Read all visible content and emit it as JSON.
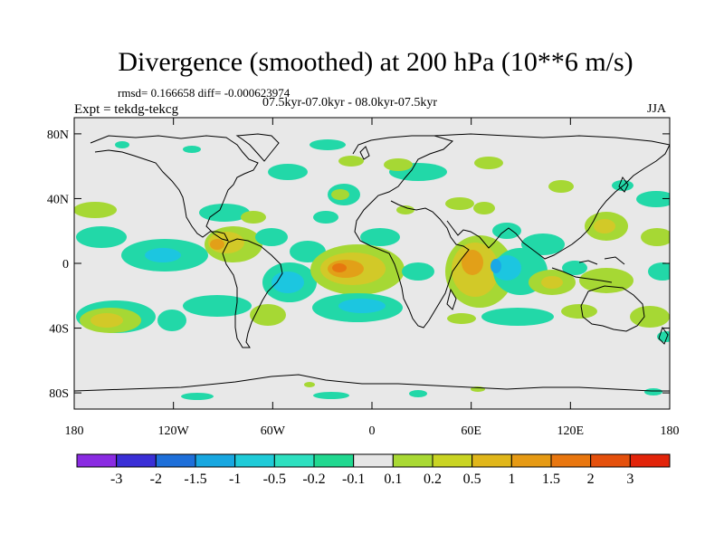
{
  "title": "Divergence (smoothed) at 200 hPa (10**6 m/s)",
  "stats_line": "rmsd= 0.166658 diff= -0.000623974",
  "periods_line": "07.5kyr-07.0kyr - 08.0kyr-07.5kyr",
  "experiment_label": "Expt = tekdg-tekcg",
  "season": "JJA",
  "map": {
    "background_color": "#e8e8e8",
    "lat_ticks": [
      {
        "value": 80,
        "label": "80N"
      },
      {
        "value": 40,
        "label": "40N"
      },
      {
        "value": 0,
        "label": "0"
      },
      {
        "value": -40,
        "label": "40S"
      },
      {
        "value": -80,
        "label": "80S"
      }
    ],
    "lon_ticks": [
      {
        "value": -180,
        "label": "180"
      },
      {
        "value": -120,
        "label": "120W"
      },
      {
        "value": -60,
        "label": "60W"
      },
      {
        "value": 0,
        "label": "0"
      },
      {
        "value": 60,
        "label": "60E"
      },
      {
        "value": 120,
        "label": "120E"
      },
      {
        "value": 180,
        "label": "180"
      }
    ]
  },
  "colorbar": {
    "colors": [
      "#8a2be2",
      "#3a2fd6",
      "#1e6fd9",
      "#18a7e0",
      "#1fcbd8",
      "#2ee0c0",
      "#21d890",
      "#e6e6e6",
      "#a9d934",
      "#c9d423",
      "#e0b61a",
      "#e69a14",
      "#e8760f",
      "#e4500c",
      "#e2240a"
    ],
    "labels": [
      "-3",
      "-2",
      "-1.5",
      "-1",
      "-0.5",
      "-0.2",
      "-0.1",
      "0.1",
      "0.2",
      "0.5",
      "1",
      "1.5",
      "2",
      "3"
    ]
  },
  "field_colors": {
    "neg_weak": "#22d8a8",
    "neg_mid": "#1cc6e0",
    "neg_strong": "#1aa8e6",
    "pos_weak": "#a6d834",
    "pos_mid": "#d2c928",
    "pos_strong": "#e2a018",
    "pos_max": "#e6780f"
  }
}
